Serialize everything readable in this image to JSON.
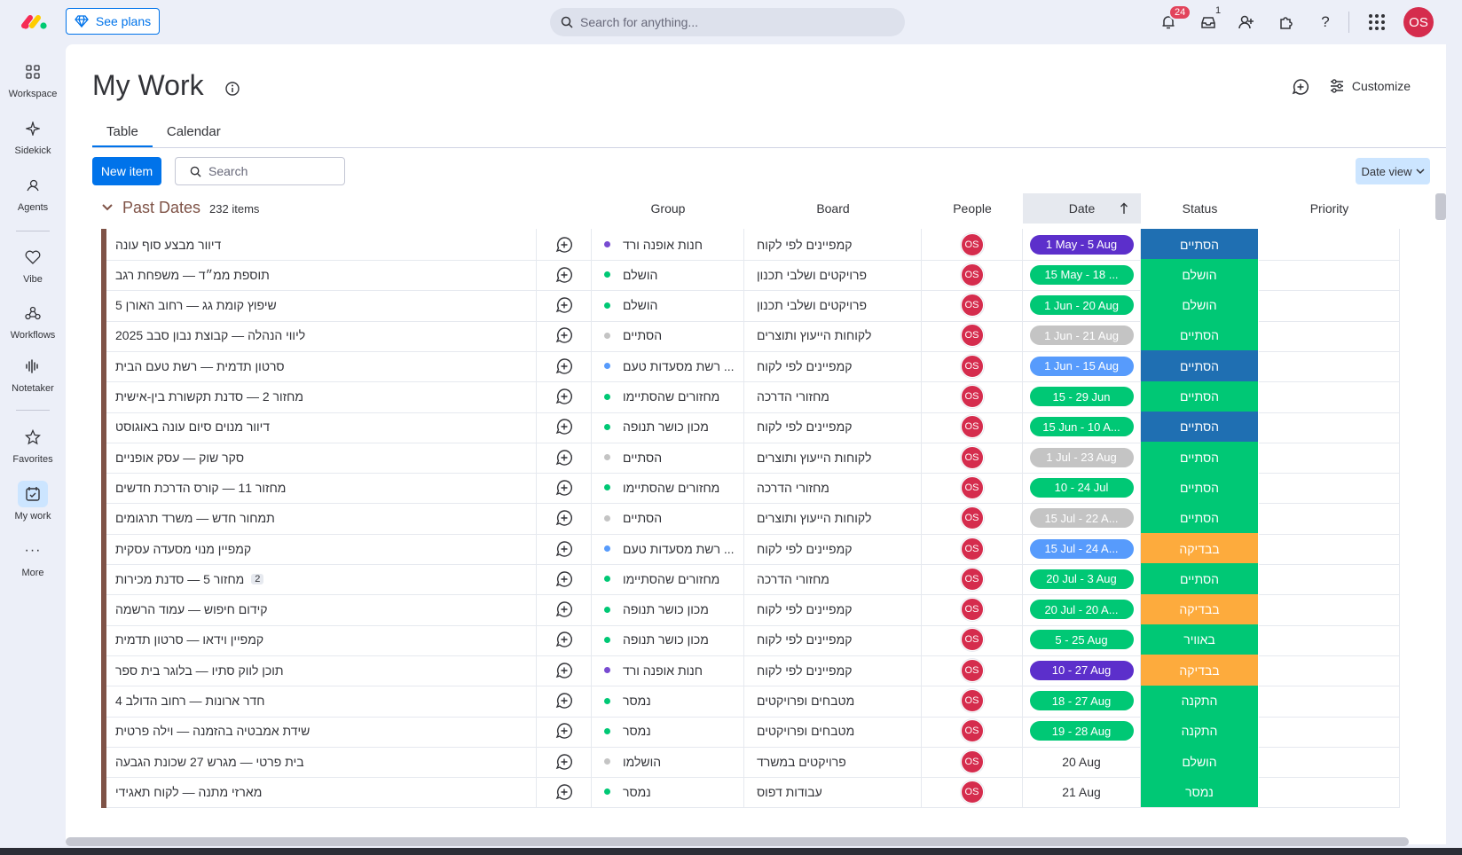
{
  "topbar": {
    "see_plans": "See plans",
    "search_placeholder": "Search for anything...",
    "notifications_count": "24",
    "inbox_count": "1",
    "avatar_initials": "OS"
  },
  "sidebar": {
    "items": [
      {
        "label": "Workspace",
        "icon": "grid-icon"
      },
      {
        "label": "Sidekick",
        "icon": "sparkle-icon"
      },
      {
        "label": "Agents",
        "icon": "agent-icon"
      },
      {
        "label": "Vibe",
        "icon": "heart-icon"
      },
      {
        "label": "Workflows",
        "icon": "workflow-icon"
      },
      {
        "label": "Notetaker",
        "icon": "waveform-icon"
      },
      {
        "label": "Favorites",
        "icon": "star-icon"
      },
      {
        "label": "My work",
        "icon": "calendar-check-icon"
      },
      {
        "label": "More",
        "icon": "ellipsis-icon"
      }
    ]
  },
  "page": {
    "title": "My Work",
    "customize": "Customize",
    "tabs": [
      "Table",
      "Calendar"
    ],
    "new_item": "New item",
    "search_placeholder": "Search",
    "date_view": "Date view"
  },
  "group": {
    "title": "Past Dates",
    "count": "232 items",
    "columns": [
      "Group",
      "Board",
      "People",
      "Date",
      "Status",
      "Priority"
    ]
  },
  "colors": {
    "purple": "#5c2fcb",
    "green": "#00c875",
    "grey": "#c4c4c4",
    "blue": "#1f76c2",
    "darkblue": "#1f6fb2",
    "lightblue": "#579bfc",
    "orange": "#fdab3d",
    "teal": "#009aff"
  },
  "rows": [
    {
      "name": "דיוור מבצע סוף עונה",
      "group": "חנות אופנה ורד",
      "gdot": "#784bd1",
      "board": "קמפיינים לפי לקוח",
      "date": "1 May - 5 Aug",
      "dcolor": "#5c2fcb",
      "status": "הסתיים",
      "scolor": "#1f6fb2"
    },
    {
      "name": "תוספת ממ״ד — משפחת רגב",
      "group": "הושלם",
      "gdot": "#00c875",
      "board": "פרויקטים ושלבי תכנון",
      "date": "15 May - 18 ...",
      "dcolor": "#00c875",
      "status": "הושלם",
      "scolor": "#00c875"
    },
    {
      "name": "שיפוץ קומת גג — רחוב האורן 5",
      "group": "הושלם",
      "gdot": "#00c875",
      "board": "פרויקטים ושלבי תכנון",
      "date": "1 Jun - 20 Aug",
      "dcolor": "#00c875",
      "status": "הושלם",
      "scolor": "#00c875"
    },
    {
      "name": "ליווי הנהלה — קבוצת נבון סבב 2025",
      "group": "הסתיים",
      "gdot": "#c4c4c4",
      "board": "לקוחות הייעוץ ותוצרים",
      "date": "1 Jun - 21 Aug",
      "dcolor": "#c4c4c4",
      "status": "הסתיים",
      "scolor": "#00c875"
    },
    {
      "name": "סרטון תדמית — רשת טעם הבית",
      "group": "רשת מסעדות טעם ...",
      "gdot": "#579bfc",
      "board": "קמפיינים לפי לקוח",
      "date": "1 Jun - 15 Aug",
      "dcolor": "#579bfc",
      "status": "הסתיים",
      "scolor": "#1f6fb2"
    },
    {
      "name": "מחזור 2 — סדנת תקשורת בין-אישית",
      "group": "מחזורים שהסתיימו",
      "gdot": "#00c875",
      "board": "מחזורי הדרכה",
      "date": "15 - 29 Jun",
      "dcolor": "#00c875",
      "status": "הסתיים",
      "scolor": "#00c875"
    },
    {
      "name": "דיוור מנוים סיום עונה באוגוסט",
      "group": "מכון כושר תנופה",
      "gdot": "#00c875",
      "board": "קמפיינים לפי לקוח",
      "date": "15 Jun - 10 A...",
      "dcolor": "#00c875",
      "status": "הסתיים",
      "scolor": "#1f6fb2"
    },
    {
      "name": "סקר שוק — עסק אופניים",
      "group": "הסתיים",
      "gdot": "#c4c4c4",
      "board": "לקוחות הייעוץ ותוצרים",
      "date": "1 Jul - 23 Aug",
      "dcolor": "#c4c4c4",
      "status": "הסתיים",
      "scolor": "#00c875"
    },
    {
      "name": "מחזור 11 — קורס הדרכת חדשים",
      "group": "מחזורים שהסתיימו",
      "gdot": "#00c875",
      "board": "מחזורי הדרכה",
      "date": "10 - 24 Jul",
      "dcolor": "#00c875",
      "status": "הסתיים",
      "scolor": "#00c875"
    },
    {
      "name": "תמחור חדש — משרד תרגומים",
      "group": "הסתיים",
      "gdot": "#c4c4c4",
      "board": "לקוחות הייעוץ ותוצרים",
      "date": "15 Jul - 22 A...",
      "dcolor": "#c4c4c4",
      "status": "הסתיים",
      "scolor": "#00c875"
    },
    {
      "name": "קמפיין מנוי מסעדה עסקית",
      "group": "רשת מסעדות טעם ...",
      "gdot": "#579bfc",
      "board": "קמפיינים לפי לקוח",
      "date": "15 Jul - 24 A...",
      "dcolor": "#579bfc",
      "status": "בבדיקה",
      "scolor": "#fdab3d"
    },
    {
      "name": "מחזור 5 — סדנת מכירות",
      "count": "2",
      "group": "מחזורים שהסתיימו",
      "gdot": "#00c875",
      "board": "מחזורי הדרכה",
      "date": "20 Jul - 3 Aug",
      "dcolor": "#00c875",
      "status": "הסתיים",
      "scolor": "#00c875"
    },
    {
      "name": "קידום חיפוש — עמוד הרשמה",
      "group": "מכון כושר תנופה",
      "gdot": "#00c875",
      "board": "קמפיינים לפי לקוח",
      "date": "20 Jul - 20 A...",
      "dcolor": "#00c875",
      "status": "בבדיקה",
      "scolor": "#fdab3d"
    },
    {
      "name": "קמפיין וידאו — סרטון תדמית",
      "group": "מכון כושר תנופה",
      "gdot": "#00c875",
      "board": "קמפיינים לפי לקוח",
      "date": "5 - 25 Aug",
      "dcolor": "#00c875",
      "status": "באוויר",
      "scolor": "#00c875"
    },
    {
      "name": "תוכן לווק סתיו — בלוגר בית ספר",
      "group": "חנות אופנה ורד",
      "gdot": "#784bd1",
      "board": "קמפיינים לפי לקוח",
      "date": "10 - 27 Aug",
      "dcolor": "#5c2fcb",
      "status": "בבדיקה",
      "scolor": "#fdab3d"
    },
    {
      "name": "חדר ארונות — רחוב הדולב 4",
      "group": "נמסר",
      "gdot": "#00c875",
      "board": "מטבחים ופרויקטים",
      "date": "18 - 27 Aug",
      "dcolor": "#00c875",
      "status": "התקנה",
      "scolor": "#00c875"
    },
    {
      "name": "שידת אמבטיה בהזמנה — וילה פרטית",
      "group": "נמסר",
      "gdot": "#00c875",
      "board": "מטבחים ופרויקטים",
      "date": "19 - 28 Aug",
      "dcolor": "#00c875",
      "status": "התקנה",
      "scolor": "#00c875"
    },
    {
      "name": "בית פרטי — מגרש 27 שכונת הגבעה",
      "group": "הושלמו",
      "gdot": "#c4c4c4",
      "board": "פרויקטים במשרד",
      "date": "20 Aug",
      "dcolor": "",
      "status": "הושלם",
      "scolor": "#00c875"
    },
    {
      "name": "מארזי מתנה — לקוח תאגידי",
      "group": "נמסר",
      "gdot": "#00c875",
      "board": "עבודות דפוס",
      "date": "21 Aug",
      "dcolor": "",
      "status": "נמסר",
      "scolor": "#00c875"
    }
  ]
}
